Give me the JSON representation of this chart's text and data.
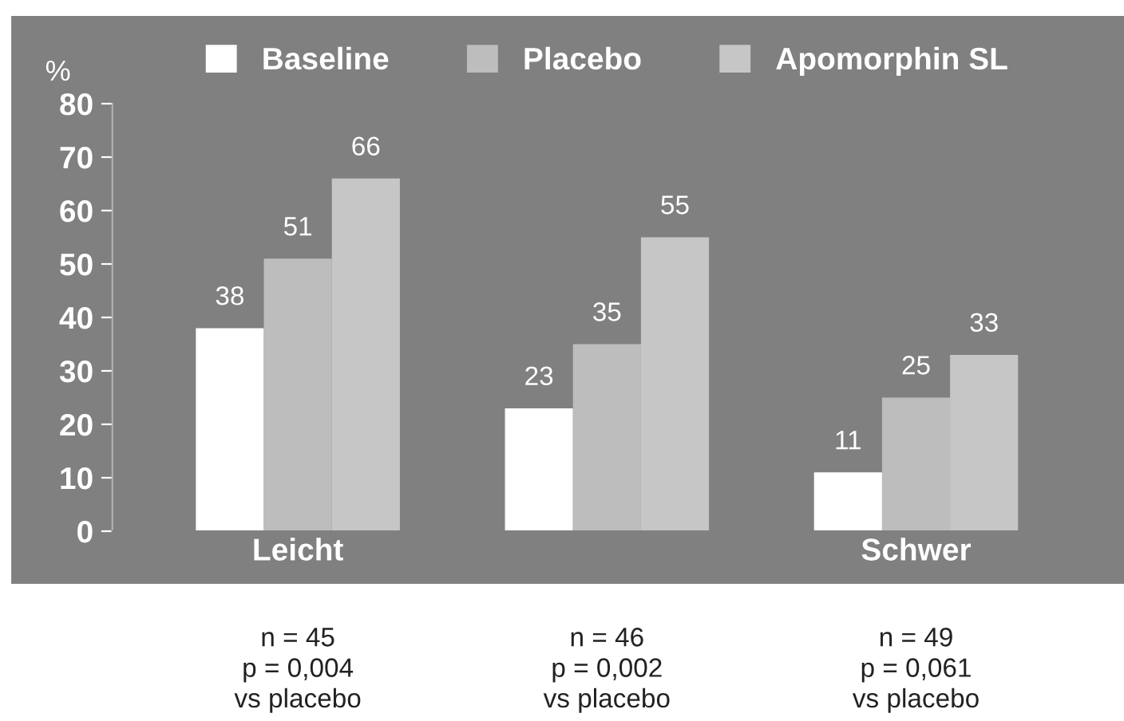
{
  "chart_data": {
    "type": "bar",
    "ylabel": "%",
    "categories": [
      "Leicht",
      null,
      "Schwer"
    ],
    "series": [
      {
        "name": "Baseline",
        "color": "#ffffff",
        "values": [
          38,
          23,
          11
        ]
      },
      {
        "name": "Placebo",
        "color": "#bdbdbd",
        "values": [
          51,
          35,
          25
        ]
      },
      {
        "name": "Apomorphin SL",
        "color": "#c6c6c6",
        "values": [
          66,
          55,
          33
        ]
      }
    ],
    "ylim": [
      0,
      80
    ],
    "yticks": [
      0,
      10,
      20,
      30,
      40,
      50,
      60,
      70,
      80
    ],
    "data_labels": true,
    "grid": false,
    "legend": "top",
    "annotations": [
      "n = 45\np = 0,004\nvs placebo",
      "n = 46\np = 0,002\nvs placebo",
      "n = 49\np = 0,061\nvs placebo"
    ]
  }
}
